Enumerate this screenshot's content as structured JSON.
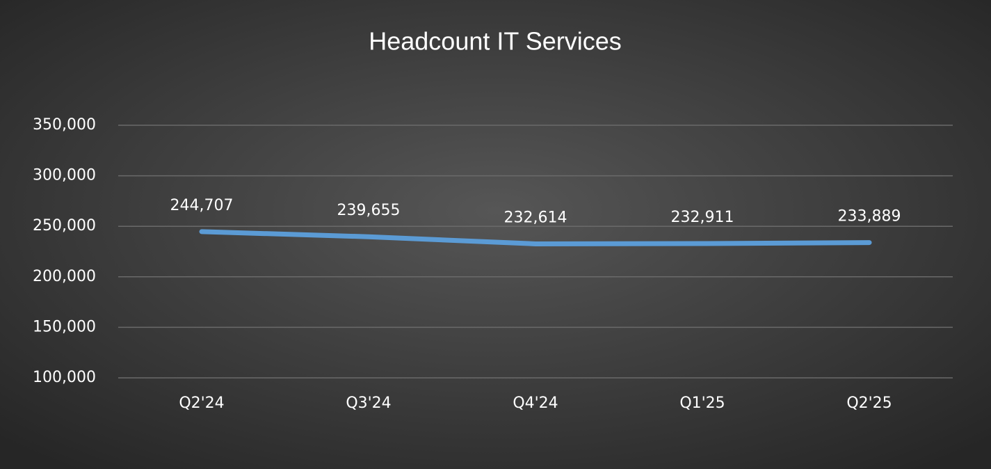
{
  "chart_data": {
    "type": "line",
    "title": "Headcount IT Services",
    "categories": [
      "Q2'24",
      "Q3'24",
      "Q4'24",
      "Q1'25",
      "Q2'25"
    ],
    "values": [
      244707,
      239655,
      232614,
      232911,
      233889
    ],
    "value_labels": [
      "244,707",
      "239,655",
      "232,614",
      "232,911",
      "233,889"
    ],
    "color": "#5b9bd5",
    "ylim": [
      100000,
      350000
    ],
    "yticks": [
      {
        "value": 100000,
        "label": "100,000"
      },
      {
        "value": 150000,
        "label": "150,000"
      },
      {
        "value": 200000,
        "label": "200,000"
      },
      {
        "value": 250000,
        "label": "250,000"
      },
      {
        "value": 300000,
        "label": "300,000"
      },
      {
        "value": 350000,
        "label": "350,000"
      }
    ],
    "grid": true
  }
}
